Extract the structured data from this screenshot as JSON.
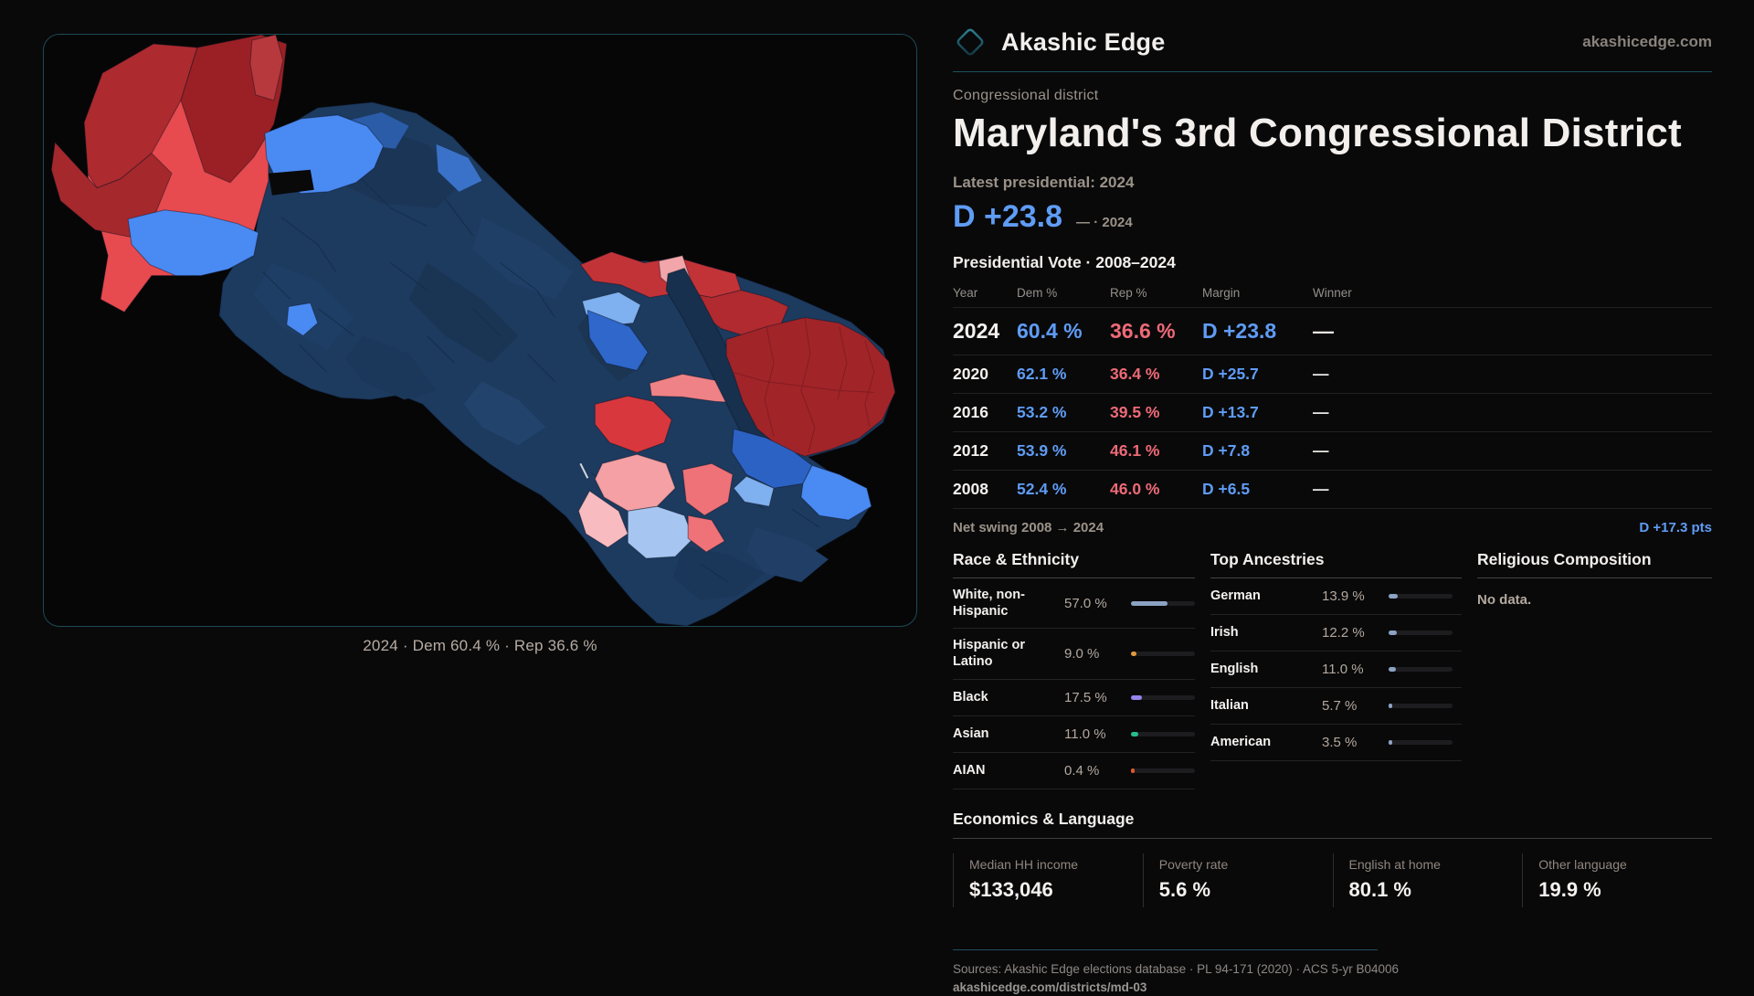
{
  "brand": {
    "name": "Akashic Edge",
    "site": "akashicedge.com"
  },
  "header": {
    "kicker": "Congressional district",
    "title": "Maryland's 3rd Congressional District",
    "latest_label": "Latest presidential: 2024",
    "headline_margin": "D +23.8",
    "headline_note": "— · 2024"
  },
  "map": {
    "caption": "2024 · Dem 60.4 % · Rep 36.6 %"
  },
  "vote_table": {
    "title": "Presidential Vote · 2008–2024",
    "columns": [
      "Year",
      "Dem %",
      "Rep %",
      "Margin",
      "Winner"
    ],
    "rows": [
      {
        "year": "2024",
        "dem": "60.4 %",
        "rep": "36.6 %",
        "margin": "D +23.8",
        "winner": "—"
      },
      {
        "year": "2020",
        "dem": "62.1 %",
        "rep": "36.4 %",
        "margin": "D +25.7",
        "winner": "—"
      },
      {
        "year": "2016",
        "dem": "53.2 %",
        "rep": "39.5 %",
        "margin": "D +13.7",
        "winner": "—"
      },
      {
        "year": "2012",
        "dem": "53.9 %",
        "rep": "46.1 %",
        "margin": "D +7.8",
        "winner": "—"
      },
      {
        "year": "2008",
        "dem": "52.4 %",
        "rep": "46.0 %",
        "margin": "D +6.5",
        "winner": "—"
      }
    ]
  },
  "net_swing": {
    "label": "Net swing 2008 → 2024",
    "value": "D +17.3 pts"
  },
  "race": {
    "heading": "Race & Ethnicity",
    "rows": [
      {
        "label": "White, non-Hispanic",
        "value": "57.0 %",
        "pct": 57.0,
        "color": "#8ca3c3"
      },
      {
        "label": "Hispanic or Latino",
        "value": "9.0 %",
        "pct": 9.0,
        "color": "#e29a3c"
      },
      {
        "label": "Black",
        "value": "17.5 %",
        "pct": 17.5,
        "color": "#9683ee"
      },
      {
        "label": "Asian",
        "value": "11.0 %",
        "pct": 11.0,
        "color": "#27bd8d"
      },
      {
        "label": "AIAN",
        "value": "0.4 %",
        "pct": 0.4,
        "color": "#e0592a"
      }
    ]
  },
  "ancestries": {
    "heading": "Top Ancestries",
    "rows": [
      {
        "label": "German",
        "value": "13.9 %",
        "pct": 13.9,
        "color": "#8ca3c3"
      },
      {
        "label": "Irish",
        "value": "12.2 %",
        "pct": 12.2,
        "color": "#8ca3c3"
      },
      {
        "label": "English",
        "value": "11.0 %",
        "pct": 11.0,
        "color": "#8ca3c3"
      },
      {
        "label": "Italian",
        "value": "5.7 %",
        "pct": 5.7,
        "color": "#8ca3c3"
      },
      {
        "label": "American",
        "value": "3.5 %",
        "pct": 3.5,
        "color": "#8ca3c3"
      }
    ]
  },
  "religion": {
    "heading": "Religious Composition",
    "empty": "No data."
  },
  "economics": {
    "heading": "Economics & Language",
    "stats": [
      {
        "label": "Median HH income",
        "value": "$133,046"
      },
      {
        "label": "Poverty rate",
        "value": "5.6 %"
      },
      {
        "label": "English at home",
        "value": "80.1 %"
      },
      {
        "label": "Other language",
        "value": "19.9 %"
      }
    ]
  },
  "footer": {
    "sources": "Sources: Akashic Edge elections database · PL 94-171 (2020) · ACS 5-yr B04006",
    "url": "akashicedge.com/districts/md-03"
  }
}
